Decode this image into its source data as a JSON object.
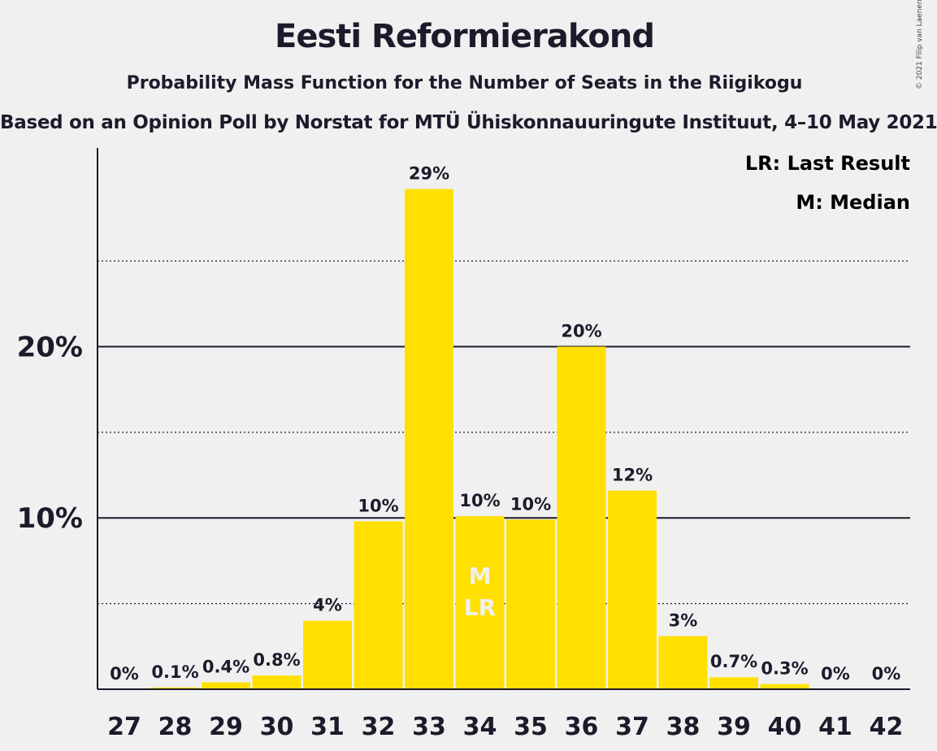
{
  "title": "Eesti Reformierakond",
  "subtitle": "Probability Mass Function for the Number of Seats in the Riigikogu",
  "subtitle2": "Based on an Opinion Poll by Norstat for MTÜ Ühiskonnauuringute Instituut, 4–10 May 2021",
  "copyright": "© 2021 Filip van Laenen",
  "legend": {
    "last_result": "LR: Last Result",
    "median": "M: Median"
  },
  "colors": {
    "bar": "#ffe000",
    "axis": "#1b1b2b",
    "background": "#f0f0f0",
    "inbar_text": "#f0f0f0"
  },
  "chart_data": {
    "type": "bar",
    "title": "Eesti Reformierakond",
    "xlabel": "",
    "ylabel": "",
    "categories": [
      "27",
      "28",
      "29",
      "30",
      "31",
      "32",
      "33",
      "34",
      "35",
      "36",
      "37",
      "38",
      "39",
      "40",
      "41",
      "42"
    ],
    "values": [
      0,
      0.1,
      0.4,
      0.8,
      4.0,
      9.8,
      29.2,
      10.1,
      9.9,
      20.0,
      11.6,
      3.1,
      0.7,
      0.3,
      0,
      0
    ],
    "labels": [
      "0%",
      "0.1%",
      "0.4%",
      "0.8%",
      "4%",
      "10%",
      "29%",
      "10%",
      "10%",
      "20%",
      "12%",
      "3%",
      "0.7%",
      "0.3%",
      "0%",
      "0%"
    ],
    "ylim": [
      0,
      31.6
    ],
    "y_ticks": [
      {
        "value": 10,
        "label": "10%"
      },
      {
        "value": 20,
        "label": "20%"
      }
    ],
    "y_minor_gridlines": [
      5,
      15,
      25
    ],
    "median_seat": "34",
    "last_result_seat": "34",
    "median_marker": "M",
    "last_result_marker": "LR",
    "legend_position": "top-right"
  }
}
